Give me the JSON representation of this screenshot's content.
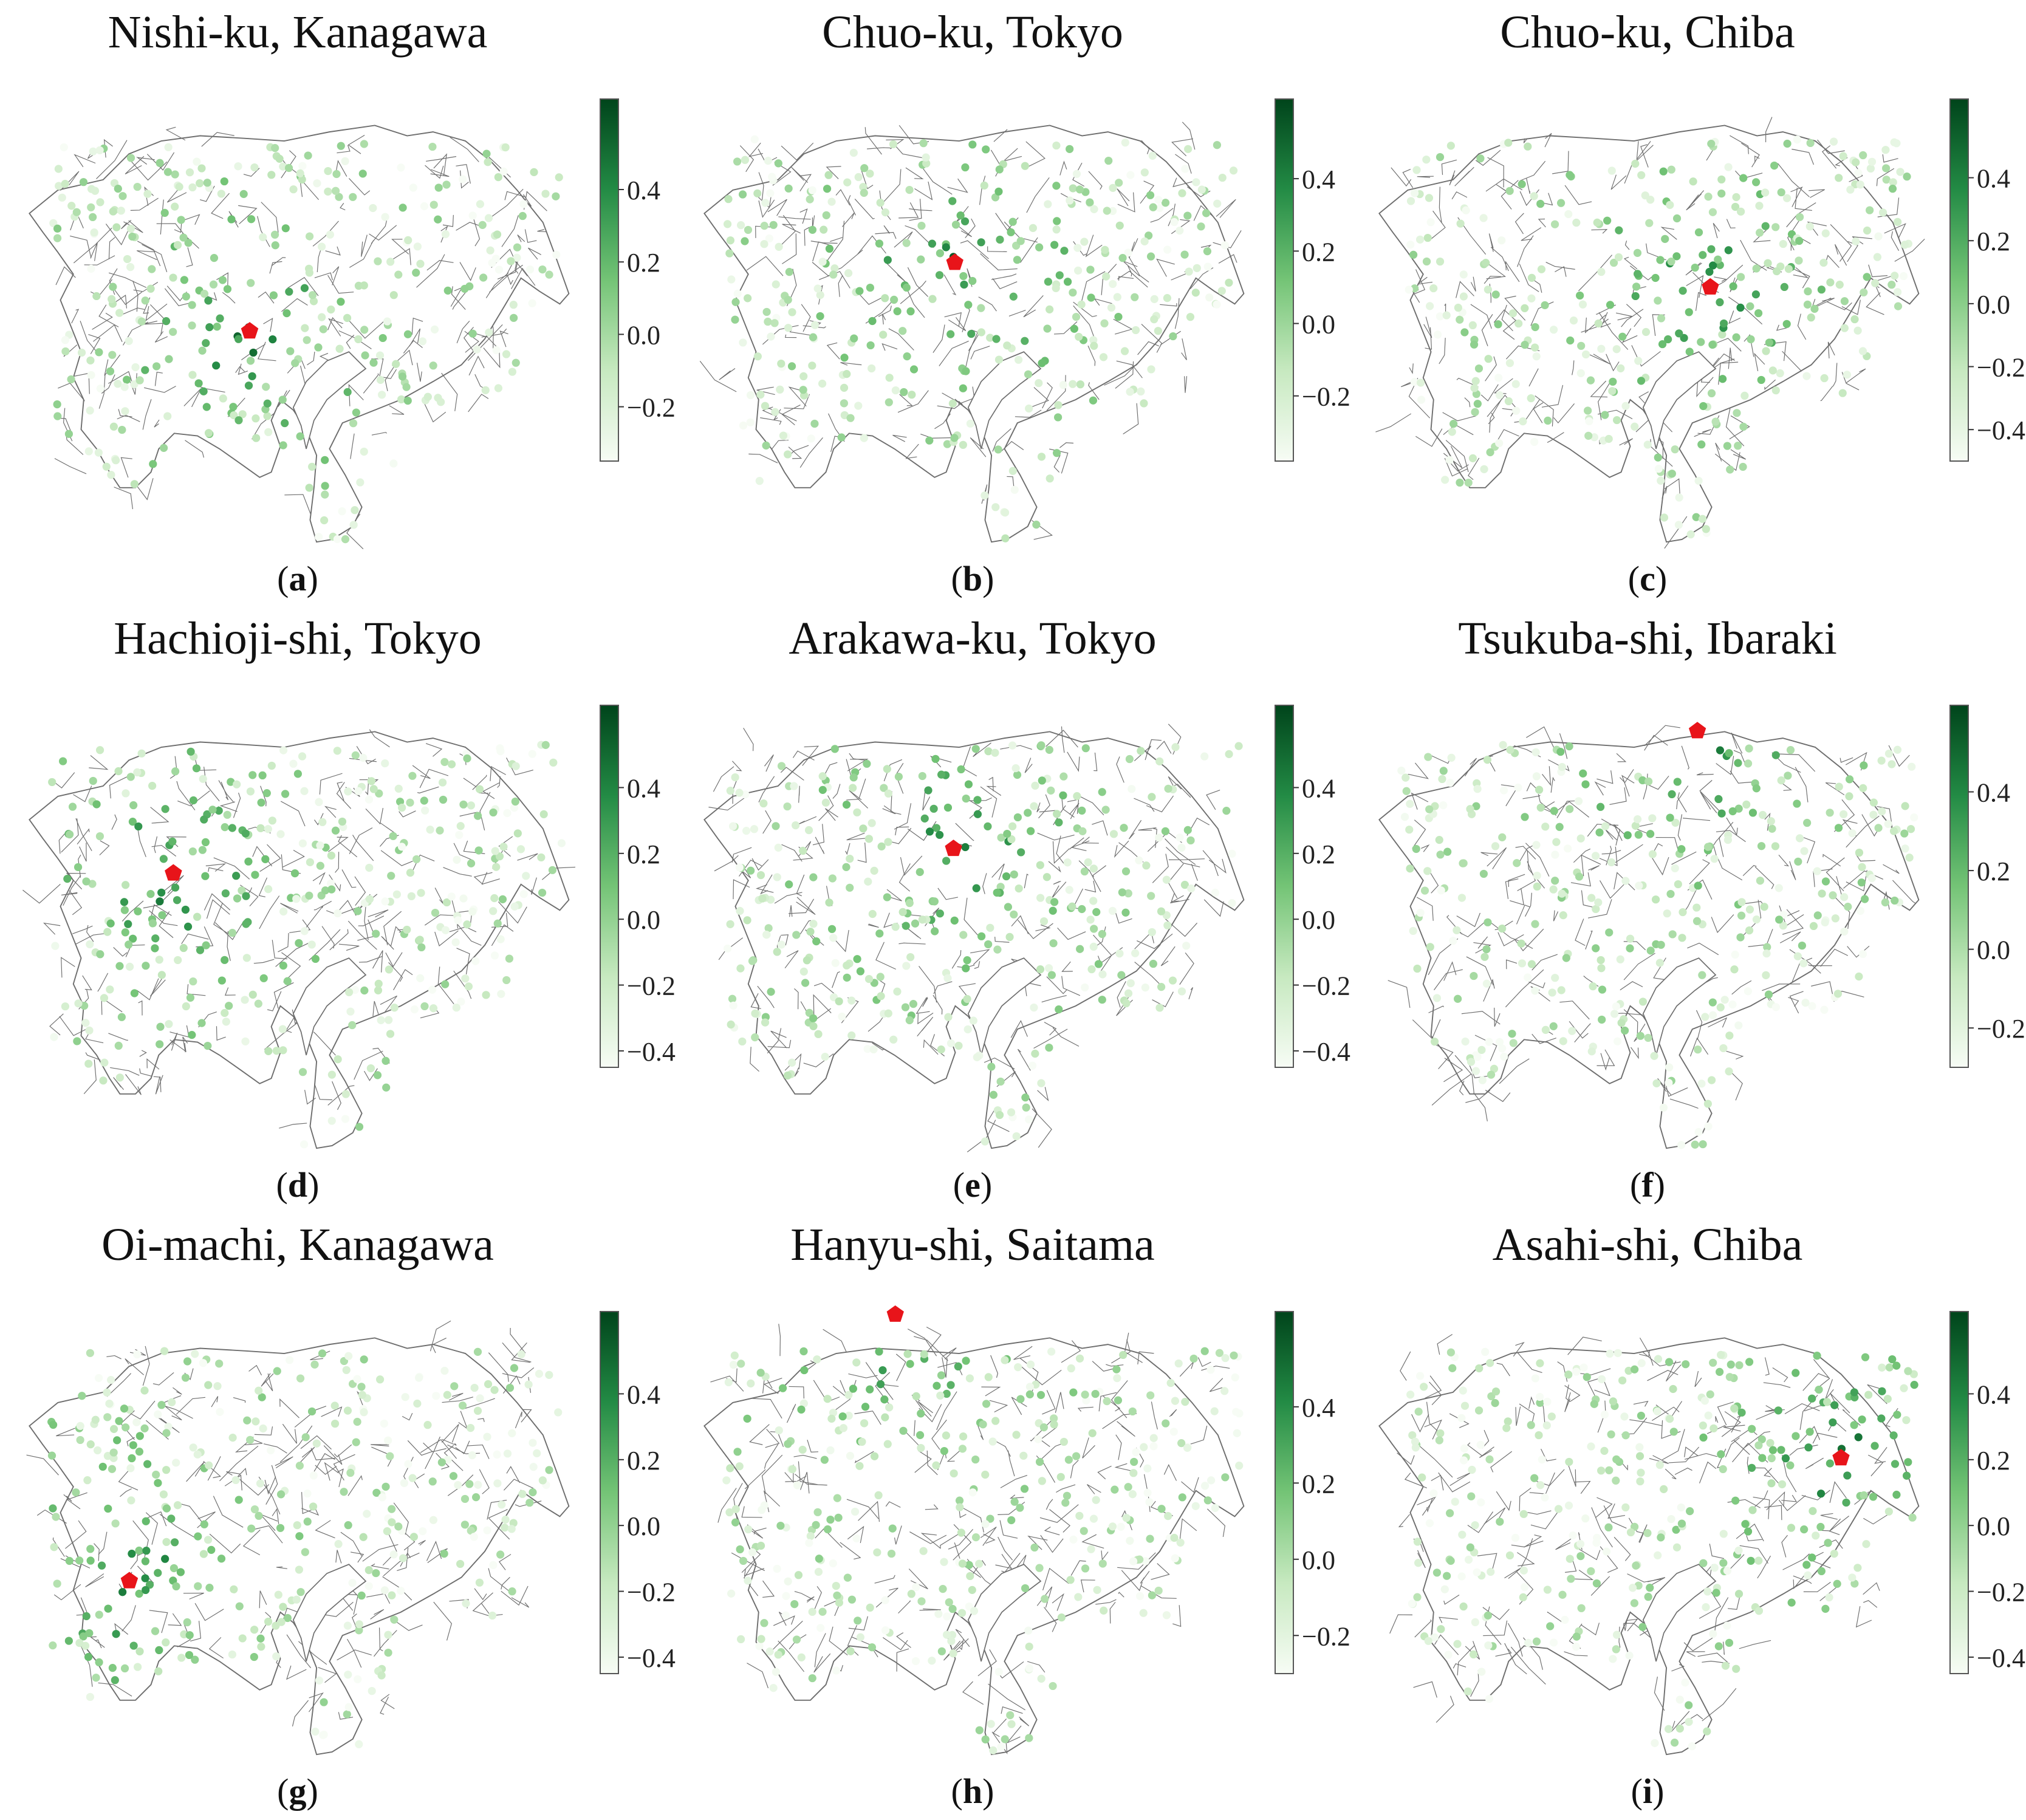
{
  "colors": {
    "background": "#ffffff",
    "border": "#6e6e6e",
    "target_marker": "#e8141a",
    "cmap_low": "#f7fcf5",
    "cmap_high": "#00441b"
  },
  "panels": [
    {
      "title": "Nishi-ku, Kanagawa",
      "label": "a",
      "target": [
        193,
        256
      ],
      "colorbar": {
        "min": -0.35,
        "max": 0.65,
        "ticks": [
          {
            "value": -0.2,
            "label": "−0.2"
          },
          {
            "value": 0.0,
            "label": "0.0"
          },
          {
            "value": 0.2,
            "label": "0.2"
          },
          {
            "value": 0.4,
            "label": "0.4"
          }
        ]
      }
    },
    {
      "title": "Chuo-ku, Tokyo",
      "label": "b",
      "target": [
        738,
        203
      ],
      "colorbar": {
        "min": -0.38,
        "max": 0.62,
        "ticks": [
          {
            "value": -0.2,
            "label": "−0.2"
          },
          {
            "value": 0.0,
            "label": "0.0"
          },
          {
            "value": 0.2,
            "label": "0.2"
          },
          {
            "value": 0.4,
            "label": "0.4"
          }
        ]
      }
    },
    {
      "title": "Chuo-ku, Chiba",
      "label": "c",
      "target": [
        1322,
        222
      ],
      "colorbar": {
        "min": -0.5,
        "max": 0.65,
        "ticks": [
          {
            "value": -0.4,
            "label": "−0.4"
          },
          {
            "value": -0.2,
            "label": "−0.2"
          },
          {
            "value": 0.0,
            "label": "0.0"
          },
          {
            "value": 0.2,
            "label": "0.2"
          },
          {
            "value": 0.4,
            "label": "0.4"
          }
        ]
      }
    },
    {
      "title": "Hachioji-shi, Tokyo",
      "label": "d",
      "target": [
        134,
        675
      ],
      "colorbar": {
        "min": -0.45,
        "max": 0.65,
        "ticks": [
          {
            "value": -0.4,
            "label": "−0.4"
          },
          {
            "value": -0.2,
            "label": "−0.2"
          },
          {
            "value": 0.0,
            "label": "0.0"
          },
          {
            "value": 0.2,
            "label": "0.2"
          },
          {
            "value": 0.4,
            "label": "0.4"
          }
        ]
      }
    },
    {
      "title": "Arakawa-ku, Tokyo",
      "label": "e",
      "target": [
        737,
        656
      ],
      "colorbar": {
        "min": -0.45,
        "max": 0.65,
        "ticks": [
          {
            "value": -0.4,
            "label": "−0.4"
          },
          {
            "value": -0.2,
            "label": "−0.2"
          },
          {
            "value": 0.0,
            "label": "0.0"
          },
          {
            "value": 0.2,
            "label": "0.2"
          },
          {
            "value": 0.4,
            "label": "0.4"
          }
        ]
      }
    },
    {
      "title": "Tsukuba-shi, Ibaraki",
      "label": "f",
      "target": [
        1312,
        565
      ],
      "colorbar": {
        "min": -0.3,
        "max": 0.62,
        "ticks": [
          {
            "value": -0.2,
            "label": "−0.2"
          },
          {
            "value": 0.0,
            "label": "0.0"
          },
          {
            "value": 0.2,
            "label": "0.2"
          },
          {
            "value": 0.4,
            "label": "0.4"
          }
        ]
      }
    },
    {
      "title": "Oi-machi, Kanagawa",
      "label": "g",
      "target": [
        100,
        1222
      ],
      "colorbar": {
        "min": -0.45,
        "max": 0.65,
        "ticks": [
          {
            "value": -0.4,
            "label": "−0.4"
          },
          {
            "value": -0.2,
            "label": "−0.2"
          },
          {
            "value": 0.0,
            "label": "0.0"
          },
          {
            "value": 0.2,
            "label": "0.2"
          },
          {
            "value": 0.4,
            "label": "0.4"
          }
        ]
      }
    },
    {
      "title": "Hanyu-shi, Saitama",
      "label": "h",
      "target": [
        692,
        1016
      ],
      "colorbar": {
        "min": -0.3,
        "max": 0.65,
        "ticks": [
          {
            "value": -0.2,
            "label": "−0.2"
          },
          {
            "value": 0.0,
            "label": "0.0"
          },
          {
            "value": 0.2,
            "label": "0.2"
          },
          {
            "value": 0.4,
            "label": "0.4"
          }
        ]
      }
    },
    {
      "title": "Asahi-shi, Chiba",
      "label": "i",
      "target": [
        1423,
        1127
      ],
      "colorbar": {
        "min": -0.45,
        "max": 0.65,
        "ticks": [
          {
            "value": -0.4,
            "label": "−0.4"
          },
          {
            "value": -0.2,
            "label": "−0.2"
          },
          {
            "value": 0.0,
            "label": "0.0"
          },
          {
            "value": 0.2,
            "label": "0.2"
          },
          {
            "value": 0.4,
            "label": "0.4"
          }
        ]
      }
    }
  ]
}
